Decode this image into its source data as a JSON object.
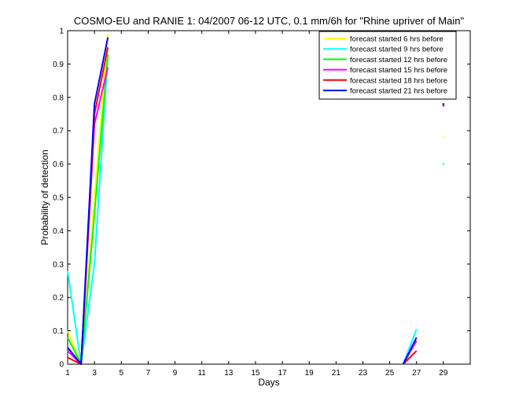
{
  "chart_data": {
    "type": "line",
    "title": "COSMO-EU and RANIE 1: 04/2007 06-12 UTC, 0.1 mm/6h for \"Rhine upriver of Main\"",
    "xlabel": "Days",
    "ylabel": "Probability of detection",
    "xlim": [
      1,
      31
    ],
    "ylim": [
      0,
      1
    ],
    "xticks": [
      1,
      3,
      5,
      7,
      9,
      11,
      13,
      15,
      17,
      19,
      21,
      23,
      25,
      27,
      29
    ],
    "yticks": [
      0,
      0.1,
      0.2,
      0.3,
      0.4,
      0.5,
      0.6,
      0.7,
      0.8,
      0.9,
      1
    ],
    "legend_position": "top-right",
    "series": [
      {
        "name": "forecast started 6 hrs before",
        "color": "#ffff00",
        "points": [
          [
            1,
            0.1
          ],
          [
            2,
            0.0
          ],
          [
            3,
            0.5
          ],
          [
            4,
            0.99
          ],
          null,
          [
            26,
            0.0
          ],
          [
            27,
            0.08
          ],
          null,
          [
            29,
            0.68
          ]
        ]
      },
      {
        "name": "forecast started 9 hrs before",
        "color": "#00ffff",
        "points": [
          [
            1,
            0.28
          ],
          [
            2,
            0.0
          ],
          [
            3,
            0.3
          ],
          [
            4,
            0.93
          ],
          null,
          [
            26,
            0.0
          ],
          [
            27,
            0.105
          ],
          null,
          [
            29,
            0.6
          ]
        ]
      },
      {
        "name": "forecast started 12 hrs before",
        "color": "#00ff00",
        "points": [
          [
            1,
            0.08
          ],
          [
            2,
            0.0
          ],
          [
            3,
            0.45
          ],
          [
            4,
            0.93
          ],
          null,
          [
            26,
            0.0
          ],
          [
            27,
            0.07
          ],
          null,
          [
            29,
            0.865
          ]
        ]
      },
      {
        "name": "forecast started 15 hrs before",
        "color": "#ff00ff",
        "points": [
          [
            1,
            0.04
          ],
          [
            2,
            0.0
          ],
          [
            3,
            0.72
          ],
          [
            4,
            0.89
          ],
          null,
          [
            26,
            0.0
          ],
          [
            27,
            0.07
          ],
          null,
          [
            29,
            0.845
          ]
        ]
      },
      {
        "name": "forecast started 18 hrs before",
        "color": "#ff0000",
        "points": [
          [
            1,
            0.02
          ],
          [
            2,
            0.0
          ],
          [
            3,
            0.75
          ],
          [
            4,
            0.95
          ],
          null,
          [
            26,
            0.0
          ],
          [
            27,
            0.04
          ],
          null,
          [
            29,
            0.775
          ]
        ]
      },
      {
        "name": "forecast started 21 hrs before",
        "color": "#0000ff",
        "points": [
          [
            1,
            0.05
          ],
          [
            2,
            0.0
          ],
          [
            3,
            0.78
          ],
          [
            4,
            0.98
          ],
          null,
          [
            26,
            0.0
          ],
          [
            27,
            0.08
          ],
          null,
          [
            29,
            0.78
          ]
        ]
      }
    ]
  }
}
